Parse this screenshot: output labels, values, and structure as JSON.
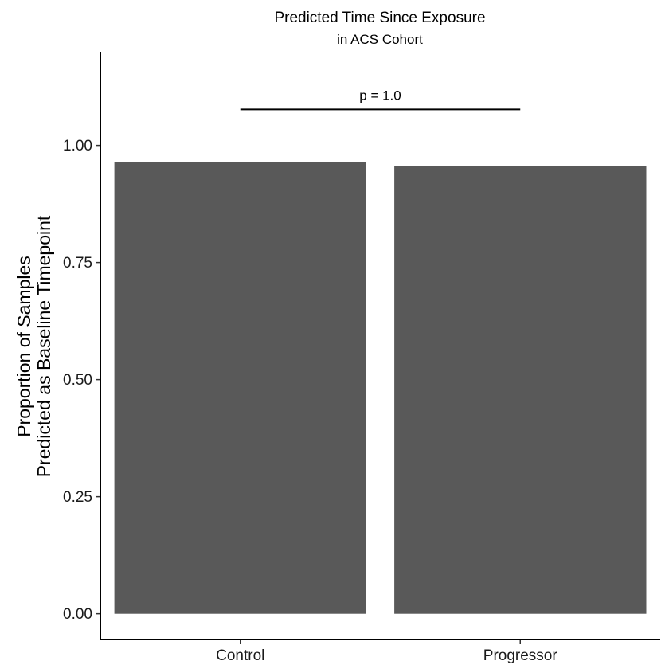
{
  "chart_data": {
    "type": "bar",
    "title": "Predicted Time Since Exposure",
    "subtitle": "in ACS Cohort",
    "xlabel": "",
    "ylabel": [
      "Proportion of Samples",
      "Predicted as Baseline Timepoint"
    ],
    "categories": [
      "Control",
      "Progressor"
    ],
    "values": [
      0.964,
      0.956
    ],
    "ylim": [
      -0.055,
      1.2
    ],
    "yticks": [
      0,
      0.25,
      0.5,
      0.75,
      1.0
    ],
    "ytick_labels": [
      "0.00",
      "0.25",
      "0.50",
      "0.75",
      "1.00"
    ],
    "grid": false,
    "bar_color": "#595959",
    "annotation": {
      "label": "p = 1.0",
      "from": "Control",
      "to": "Progressor",
      "y": 1.077
    }
  }
}
